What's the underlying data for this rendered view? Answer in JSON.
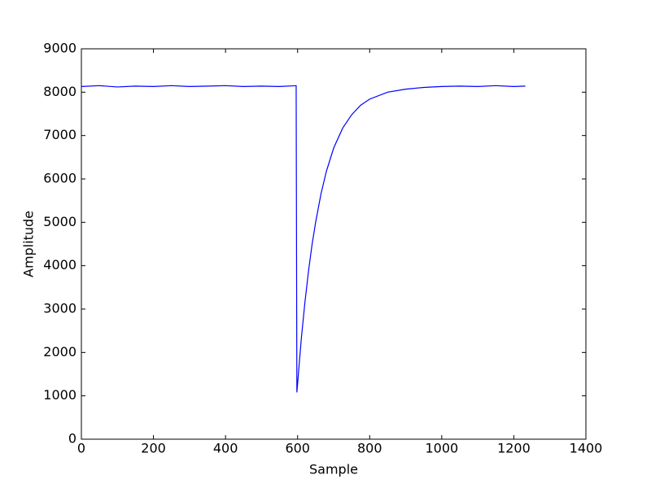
{
  "chart_data": {
    "type": "line",
    "x_label": "Sample",
    "y_label": "Amplitude",
    "series": [
      {
        "color": "#0000ff",
        "x": [
          0,
          50,
          100,
          150,
          200,
          250,
          300,
          350,
          400,
          450,
          500,
          550,
          596,
          598,
          610,
          620,
          630,
          640,
          650,
          665,
          680,
          700,
          725,
          750,
          775,
          800,
          850,
          900,
          950,
          1000,
          1050,
          1100,
          1150,
          1200,
          1232
        ],
        "values": [
          8130,
          8150,
          8120,
          8140,
          8130,
          8150,
          8130,
          8140,
          8150,
          8130,
          8140,
          8130,
          8150,
          1080,
          2290,
          3130,
          3860,
          4480,
          5000,
          5660,
          6180,
          6710,
          7170,
          7480,
          7700,
          7840,
          8000,
          8070,
          8110,
          8130,
          8140,
          8130,
          8150,
          8130,
          8140
        ]
      }
    ],
    "xlim": [
      0,
      1400
    ],
    "xticks": [
      0,
      200,
      400,
      600,
      800,
      1000,
      1200,
      1400
    ],
    "ylim": [
      0,
      9000
    ],
    "yticks": [
      0,
      1000,
      2000,
      3000,
      4000,
      5000,
      6000,
      7000,
      8000,
      9000
    ]
  }
}
